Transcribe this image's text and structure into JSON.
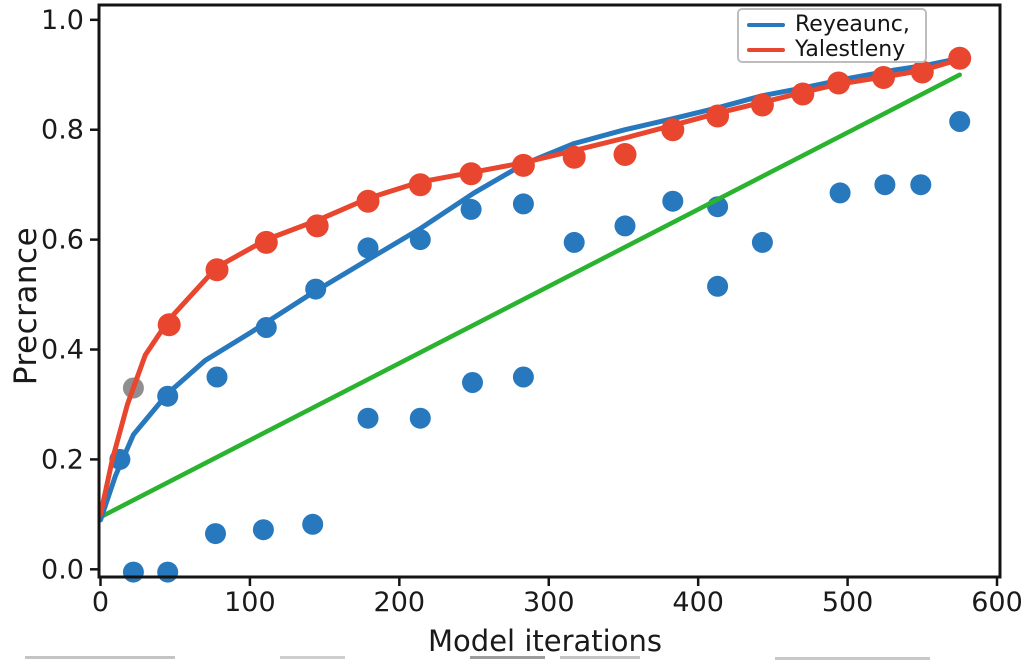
{
  "figure": {
    "title": "",
    "xlabel": "Model iterations",
    "ylabel": "Precrance",
    "x_ticks": [
      "0",
      "100",
      "200",
      "300",
      "400",
      "500",
      "600"
    ],
    "y_ticks": [
      "0.0",
      "0.2",
      "0.4",
      "0.6",
      "0.8",
      "1.0"
    ]
  },
  "legend": {
    "position": "upper right",
    "items": [
      {
        "label": "Reyeaunc,",
        "color": "#2878bd"
      },
      {
        "label": "Yalestleny",
        "color": "#e8462e"
      }
    ]
  },
  "colors": {
    "blue": "#2878bd",
    "red": "#e8462e",
    "green": "#29b32e",
    "gray": "#8f8f8f",
    "spine": "#141414",
    "tick_text": "#1a1a1a"
  },
  "chart_data": {
    "type": "line",
    "title": "",
    "xlabel": "Model iterations",
    "ylabel": "Precrance",
    "xlim": [
      -1,
      602
    ],
    "ylim": [
      -0.014,
      1.027
    ],
    "grid": false,
    "legend_position": "upper right",
    "x_tick_values": [
      0,
      100,
      200,
      300,
      400,
      500,
      600
    ],
    "y_tick_values": [
      0.0,
      0.2,
      0.4,
      0.6,
      0.8,
      1.0
    ],
    "series": [
      {
        "name": "Reyeaunc,",
        "type": "line",
        "color": "#2878bd",
        "points": [
          [
            0,
            0.09
          ],
          [
            10,
            0.17
          ],
          [
            22,
            0.245
          ],
          [
            45,
            0.32
          ],
          [
            70,
            0.38
          ],
          [
            100,
            0.43
          ],
          [
            140,
            0.5
          ],
          [
            180,
            0.565
          ],
          [
            214,
            0.62
          ],
          [
            250,
            0.685
          ],
          [
            283,
            0.737
          ],
          [
            317,
            0.775
          ],
          [
            351,
            0.8
          ],
          [
            383,
            0.82
          ],
          [
            413,
            0.84
          ],
          [
            443,
            0.862
          ],
          [
            470,
            0.876
          ],
          [
            500,
            0.893
          ],
          [
            530,
            0.908
          ],
          [
            552,
            0.917
          ],
          [
            575,
            0.93
          ]
        ]
      },
      {
        "name": "Yalestleny",
        "type": "line+markers",
        "color": "#e8462e",
        "points": [
          [
            0,
            0.1
          ],
          [
            8,
            0.2
          ],
          [
            18,
            0.3
          ],
          [
            30,
            0.39
          ],
          [
            46,
            0.455
          ],
          [
            78,
            0.55
          ],
          [
            111,
            0.6
          ],
          [
            145,
            0.635
          ],
          [
            179,
            0.675
          ],
          [
            214,
            0.705
          ],
          [
            248,
            0.722
          ],
          [
            283,
            0.74
          ],
          [
            317,
            0.762
          ],
          [
            351,
            0.785
          ],
          [
            383,
            0.808
          ],
          [
            413,
            0.83
          ],
          [
            443,
            0.85
          ],
          [
            470,
            0.868
          ],
          [
            494,
            0.883
          ],
          [
            524,
            0.896
          ],
          [
            550,
            0.908
          ],
          [
            575,
            0.928
          ]
        ],
        "marker_points": [
          [
            46,
            0.445
          ],
          [
            78,
            0.545
          ],
          [
            111,
            0.595
          ],
          [
            145,
            0.625
          ],
          [
            179,
            0.67
          ],
          [
            214,
            0.7
          ],
          [
            248,
            0.72
          ],
          [
            283,
            0.735
          ],
          [
            317,
            0.75
          ],
          [
            351,
            0.755
          ],
          [
            383,
            0.8
          ],
          [
            413,
            0.825
          ],
          [
            443,
            0.845
          ],
          [
            470,
            0.865
          ],
          [
            494,
            0.885
          ],
          [
            524,
            0.895
          ],
          [
            550,
            0.905
          ],
          [
            575,
            0.93
          ]
        ]
      },
      {
        "name": "reference-line",
        "type": "line",
        "color": "#29b32e",
        "points": [
          [
            0,
            0.095
          ],
          [
            575,
            0.9
          ]
        ]
      },
      {
        "name": "scatter-observations",
        "type": "scatter",
        "color": "#2878bd",
        "points": [
          [
            13,
            0.2
          ],
          [
            22,
            -0.005
          ],
          [
            45,
            -0.005
          ],
          [
            45,
            0.315
          ],
          [
            77,
            0.065
          ],
          [
            78,
            0.35
          ],
          [
            109,
            0.072
          ],
          [
            111,
            0.44
          ],
          [
            142,
            0.082
          ],
          [
            144,
            0.51
          ],
          [
            179,
            0.275
          ],
          [
            179,
            0.585
          ],
          [
            214,
            0.275
          ],
          [
            214,
            0.6
          ],
          [
            249,
            0.34
          ],
          [
            248,
            0.655
          ],
          [
            283,
            0.35
          ],
          [
            283,
            0.665
          ],
          [
            317,
            0.595
          ],
          [
            351,
            0.625
          ],
          [
            383,
            0.67
          ],
          [
            413,
            0.515
          ],
          [
            413,
            0.66
          ],
          [
            443,
            0.595
          ],
          [
            495,
            0.685
          ],
          [
            525,
            0.7
          ],
          [
            549,
            0.7
          ],
          [
            575,
            0.815
          ]
        ]
      },
      {
        "name": "gray-outlier",
        "type": "scatter",
        "color": "#8f8f8f",
        "points": [
          [
            22,
            0.33
          ]
        ]
      }
    ]
  }
}
